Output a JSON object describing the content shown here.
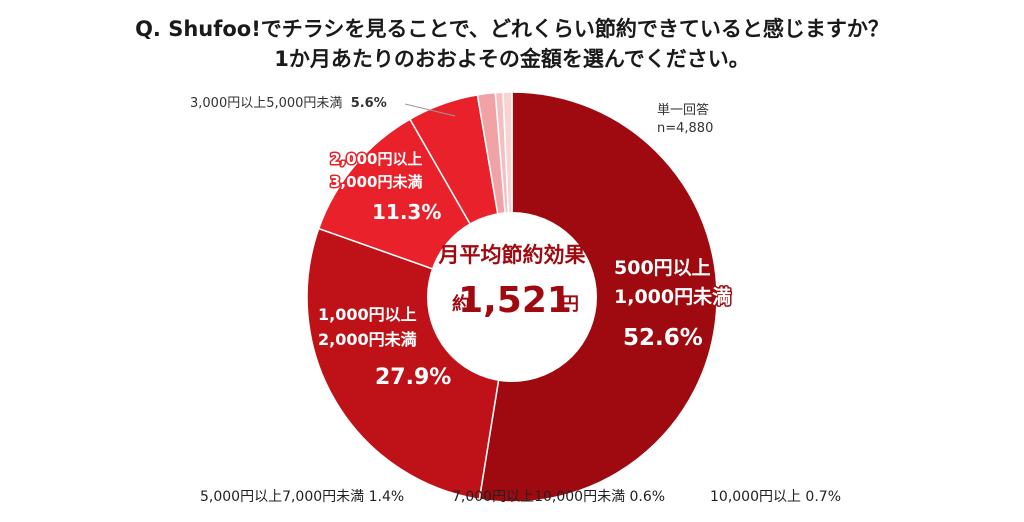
{
  "title_line1": "Q. Shufoo!でチラシを見ることで、どれくらい節約できていると感じますか？",
  "title_line2": "1か月あたりのおおよその金額を選んでください。",
  "answer_type": "単一回答",
  "sample_size": "n=4,880",
  "center": {
    "label": "月平均節約効果",
    "prefix": "約",
    "value": "1,521",
    "unit": "円"
  },
  "colors": {
    "dark_red": "#9e0a0f",
    "mid_red": "#be1218",
    "bright_red": "#e8212a",
    "pink1": "#f0a2a4",
    "pink2": "#f5bec0",
    "pink3": "#f8d3d4"
  },
  "chart_data": {
    "type": "pie",
    "subtype": "donut",
    "categories": [
      "500円以上1,000円未満",
      "1,000円以上2,000円未満",
      "2,000円以上3,000円未満",
      "3,000円以上5,000円未満",
      "5,000円以上7,000円未満",
      "7,000円以上10,000円未満",
      "10,000円以上"
    ],
    "values": [
      52.6,
      27.9,
      11.3,
      5.6,
      1.4,
      0.6,
      0.7
    ],
    "value_labels": [
      "52.6%",
      "27.9%",
      "11.3%",
      "5.6%",
      "1.4%",
      "0.6%",
      "0.7%"
    ],
    "slice_labels": {
      "s500_line1": "500円以上",
      "s500_line2": "1,000円未満",
      "s1000_line1": "1,000円以上",
      "s1000_line2": "2,000円未満",
      "s2000_line1": "2,000円以上",
      "s2000_line2": "3,000円未満",
      "s3000": "3,000円以上5,000円未満"
    },
    "bottom_labels": [
      "5,000円以上7,000円未満 1.4%",
      "7,000円以上10,000円未満 0.6%",
      "10,000円以上 0.7%"
    ]
  }
}
